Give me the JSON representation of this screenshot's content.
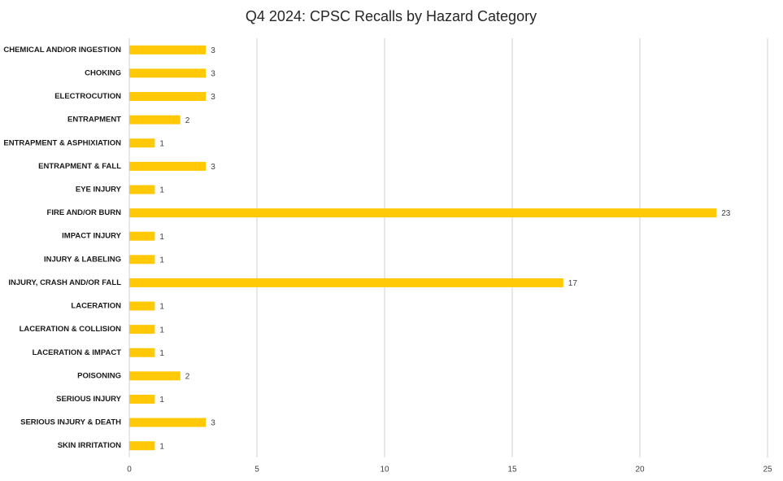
{
  "chart_data": {
    "type": "bar",
    "title": "Q4 2024: CPSC Recalls by Hazard Category",
    "categories": [
      "CHEMICAL AND/OR INGESTION",
      "CHOKING",
      "ELECTROCUTION",
      "ENTRAPMENT",
      "ENTRAPMENT & ASPHIXIATION",
      "ENTRAPMENT & FALL",
      "EYE INJURY",
      "FIRE AND/OR BURN",
      "IMPACT INJURY",
      "INJURY & LABELING",
      "INJURY, CRASH AND/OR FALL",
      "LACERATION",
      "LACERATION & COLLISION",
      "LACERATION & IMPACT",
      "POISONING",
      "SERIOUS INJURY",
      "SERIOUS INJURY & DEATH",
      "SKIN IRRITATION"
    ],
    "values": [
      3,
      3,
      3,
      2,
      1,
      3,
      1,
      23,
      1,
      1,
      17,
      1,
      1,
      1,
      2,
      1,
      3,
      1
    ],
    "color": "#ffc907",
    "xlim": [
      0,
      25
    ],
    "xticks": [
      0,
      5,
      10,
      15,
      20,
      25
    ],
    "grid": true
  }
}
